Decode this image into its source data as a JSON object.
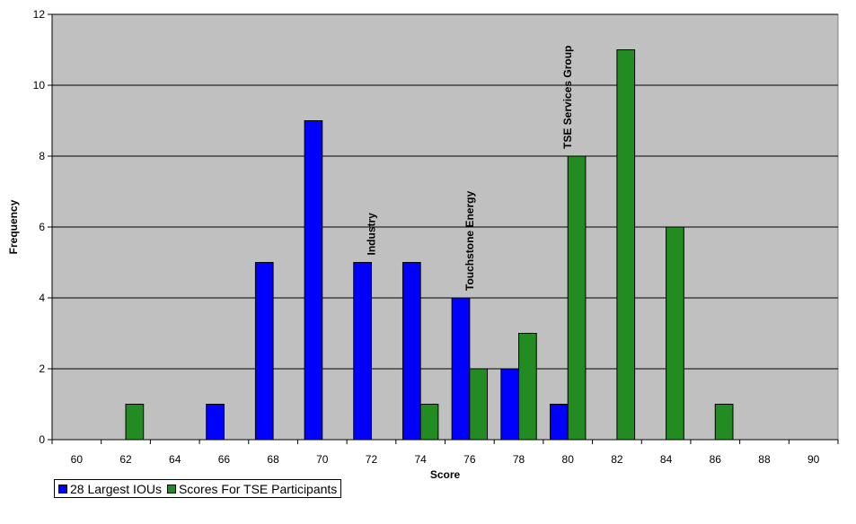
{
  "chart_data": {
    "type": "bar",
    "categories": [
      "60",
      "62",
      "64",
      "66",
      "68",
      "70",
      "72",
      "74",
      "76",
      "78",
      "80",
      "82",
      "84",
      "86",
      "88",
      "90"
    ],
    "series": [
      {
        "name": "28 Largest IOUs",
        "color": "#0000ff",
        "values": [
          0,
          0,
          0,
          1,
          5,
          9,
          5,
          5,
          4,
          2,
          1,
          0,
          0,
          0,
          0,
          0
        ]
      },
      {
        "name": "Scores For TSE Participants",
        "color": "#228b22",
        "values": [
          0,
          1,
          0,
          0,
          0,
          0,
          0,
          1,
          2,
          3,
          8,
          11,
          6,
          1,
          0,
          0
        ]
      }
    ],
    "xlabel": "Score",
    "ylabel": "Frequency",
    "ylim": [
      0,
      12
    ],
    "yticks": [
      "0",
      "2",
      "4",
      "6",
      "8",
      "10",
      "12"
    ],
    "grid": true,
    "legend_position": "bottom-left",
    "plot_background": "#c0c0c0",
    "annotations": [
      {
        "text": "Industry",
        "category": "72",
        "value": 5
      },
      {
        "text": "Touchstone Energy",
        "category": "76",
        "value": 4
      },
      {
        "text": "TSE Services Group",
        "category": "80",
        "value": 8
      }
    ]
  }
}
